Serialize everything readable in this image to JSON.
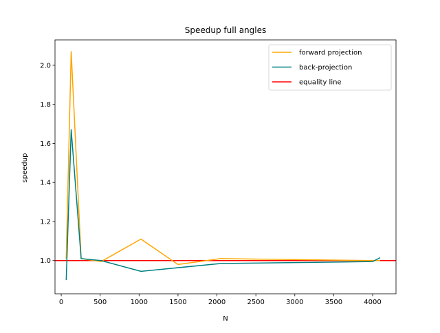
{
  "chart_data": {
    "type": "line",
    "title": "Speedup full angles",
    "xlabel": "N",
    "ylabel": "speedup",
    "xlim": [
      -80,
      4300
    ],
    "ylim": [
      0.83,
      2.13
    ],
    "xticks": [
      0,
      500,
      1000,
      1500,
      2000,
      2500,
      3000,
      3500,
      4000
    ],
    "xtick_labels": [
      "0",
      "500",
      "1000",
      "1500",
      "2000",
      "2500",
      "3000",
      "3500",
      "4000"
    ],
    "yticks": [
      1.0,
      1.2,
      1.4,
      1.6,
      1.8,
      2.0
    ],
    "ytick_labels": [
      "1.0",
      "1.2",
      "1.4",
      "1.6",
      "1.8",
      "2.0"
    ],
    "grid": false,
    "legend_position": "top-right",
    "series": [
      {
        "name": "forward projection",
        "color": "#ffa500",
        "x": [
          64,
          128,
          256,
          512,
          1024,
          1500,
          2048,
          4000,
          4096
        ],
        "y": [
          1.01,
          2.07,
          1.01,
          0.995,
          1.11,
          0.98,
          1.01,
          1.0,
          1.0
        ]
      },
      {
        "name": "back-projection",
        "color": "#008080",
        "x": [
          64,
          128,
          256,
          512,
          1024,
          2048,
          4000,
          4096
        ],
        "y": [
          0.9,
          1.67,
          1.01,
          1.0,
          0.945,
          0.985,
          0.995,
          1.015
        ]
      }
    ],
    "reference_lines": [
      {
        "name": "equality line",
        "orientation": "horizontal",
        "y": 1.0,
        "color": "#ff0000"
      }
    ]
  }
}
